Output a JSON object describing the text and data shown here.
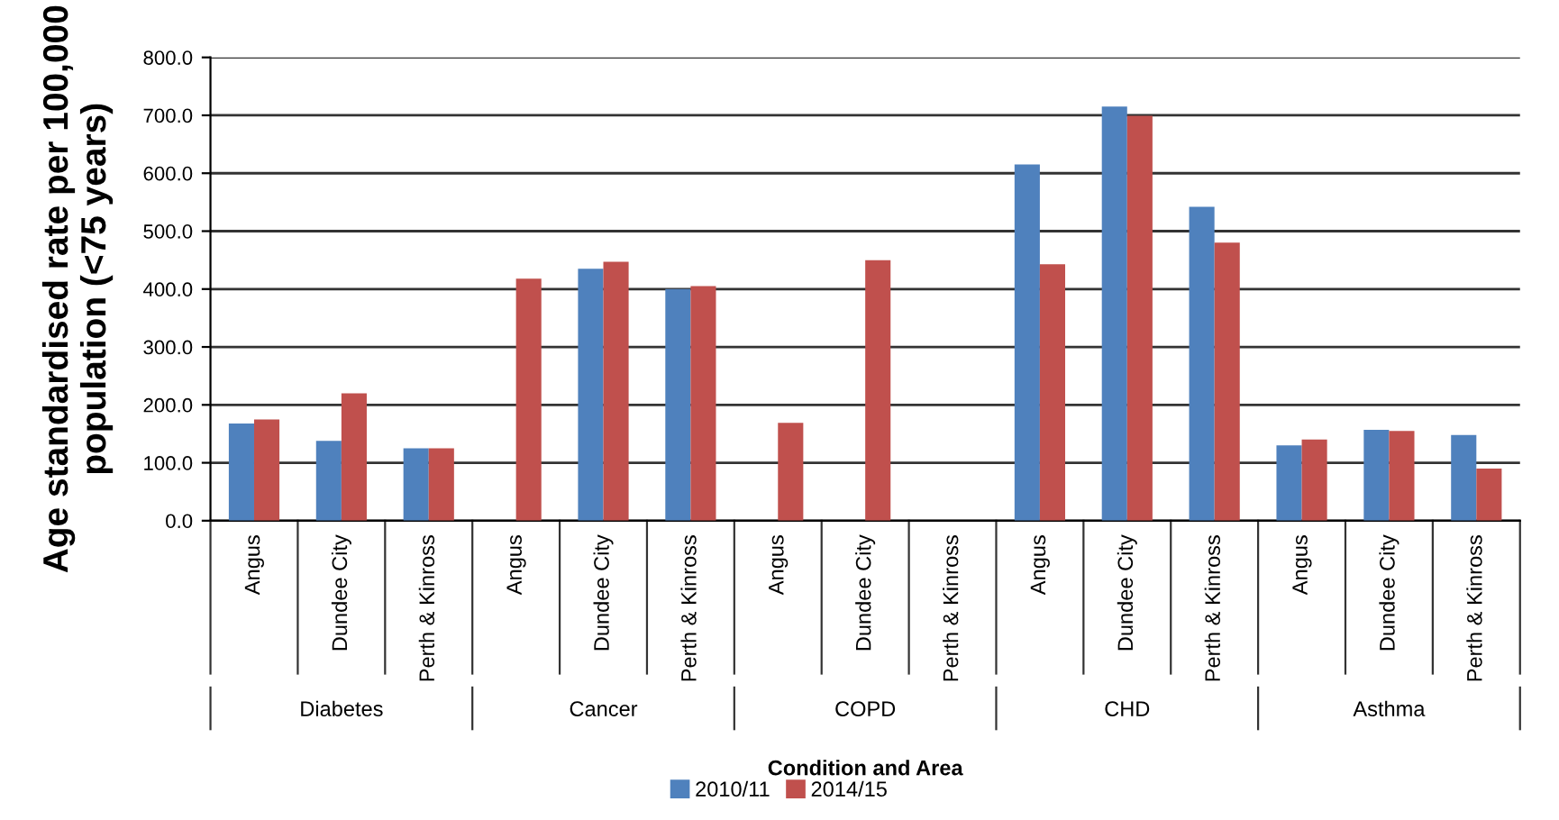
{
  "chart_data": {
    "type": "bar",
    "xlabel": "Condition and Area",
    "ylabel": "Age standardised rate per 100,000\npopulation (<75 years)",
    "categories": [
      "Angus",
      "Dundee City",
      "Perth & Kinross",
      "Angus",
      "Dundee City",
      "Perth & Kinross",
      "Angus",
      "Dundee City",
      "Perth & Kinross",
      "Angus",
      "Dundee City",
      "Perth & Kinross",
      "Angus",
      "Dundee City",
      "Perth & Kinross"
    ],
    "annotations": [
      "Diabetes",
      "Cancer",
      "COPD",
      "CHD",
      "Asthma"
    ],
    "series": [
      {
        "name": "2010/11",
        "color": "#4f81bd",
        "values": [
          168,
          138,
          125,
          null,
          435,
          400,
          null,
          null,
          null,
          615,
          715,
          542,
          130,
          157,
          148
        ]
      },
      {
        "name": "2014/15",
        "color": "#c0504d",
        "values": [
          175,
          220,
          125,
          418,
          447,
          405,
          169,
          450,
          null,
          443,
          699,
          480,
          140,
          155,
          90
        ]
      }
    ],
    "ylim": [
      0,
      800
    ],
    "yticks": [
      {
        "value": 0,
        "label": "0.0"
      },
      {
        "value": 100,
        "label": "100.0"
      },
      {
        "value": 200,
        "label": "200.0"
      },
      {
        "value": 300,
        "label": "300.0"
      },
      {
        "value": 400,
        "label": "400.0"
      },
      {
        "value": 500,
        "label": "500.0"
      },
      {
        "value": 600,
        "label": "600.0"
      },
      {
        "value": 700,
        "label": "700.0"
      },
      {
        "value": 800,
        "label": "800.0"
      }
    ],
    "grid": "y",
    "legend": "bottom"
  }
}
